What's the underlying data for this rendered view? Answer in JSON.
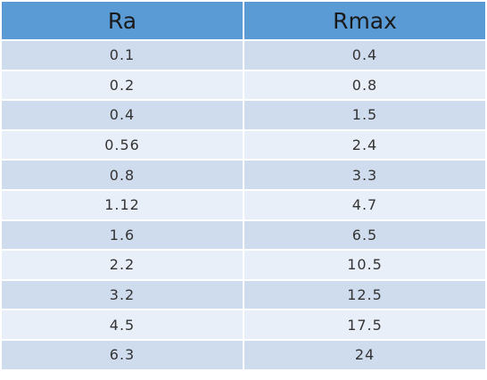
{
  "table": {
    "header": [
      "Ra",
      "Rmax"
    ],
    "rows": [
      [
        "0.1",
        "0.4"
      ],
      [
        "0.2",
        "0.8"
      ],
      [
        "0.4",
        "1.5"
      ],
      [
        "0.56",
        "2.4"
      ],
      [
        "0.8",
        "3.3"
      ],
      [
        "1.12",
        "4.7"
      ],
      [
        "1.6",
        "6.5"
      ],
      [
        "2.2",
        "10.5"
      ],
      [
        "3.2",
        "12.5"
      ],
      [
        "4.5",
        "17.5"
      ],
      [
        "6.3",
        "24"
      ]
    ]
  }
}
